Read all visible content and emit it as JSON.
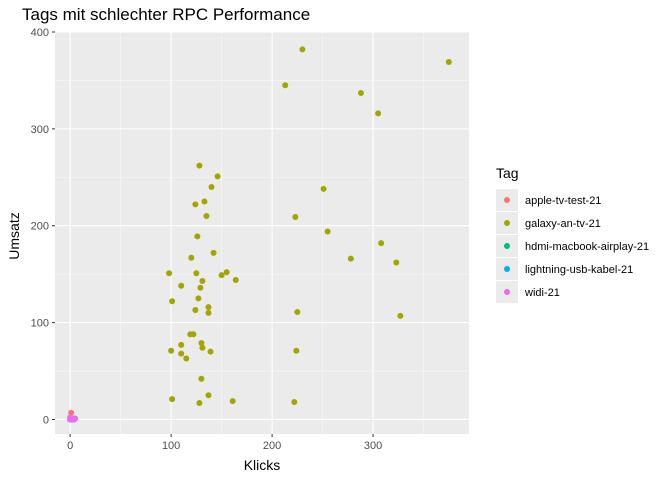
{
  "chart_data": {
    "type": "scatter",
    "title": "Tags mit schlechter RPC Performance",
    "xlabel": "Klicks",
    "ylabel": "Umsatz",
    "xlim": [
      -15,
      395
    ],
    "ylim": [
      -15,
      400
    ],
    "x_ticks": [
      0,
      100,
      200,
      300
    ],
    "y_ticks": [
      0,
      100,
      200,
      300,
      400
    ],
    "grid": true,
    "legend": {
      "title": "Tag",
      "position": "right"
    },
    "series": [
      {
        "name": "apple-tv-test-21",
        "color": "#F8766D",
        "points": [
          [
            1,
            7
          ],
          [
            1,
            0
          ],
          [
            2,
            0
          ]
        ]
      },
      {
        "name": "galaxy-an-tv-21",
        "color": "#A3A500",
        "points": [
          [
            230,
            382
          ],
          [
            375,
            369
          ],
          [
            213,
            345
          ],
          [
            288,
            337
          ],
          [
            305,
            316
          ],
          [
            128,
            262
          ],
          [
            146,
            251
          ],
          [
            133,
            225
          ],
          [
            140,
            240
          ],
          [
            251,
            238
          ],
          [
            124,
            222
          ],
          [
            135,
            210
          ],
          [
            223,
            209
          ],
          [
            255,
            194
          ],
          [
            308,
            182
          ],
          [
            126,
            189
          ],
          [
            142,
            172
          ],
          [
            120,
            167
          ],
          [
            278,
            166
          ],
          [
            323,
            162
          ],
          [
            98,
            151
          ],
          [
            125,
            151
          ],
          [
            155,
            152
          ],
          [
            150,
            149
          ],
          [
            164,
            144
          ],
          [
            131,
            143
          ],
          [
            129,
            136
          ],
          [
            110,
            138
          ],
          [
            137,
            116
          ],
          [
            137,
            110
          ],
          [
            127,
            125
          ],
          [
            101,
            122
          ],
          [
            124,
            113
          ],
          [
            225,
            111
          ],
          [
            327,
            107
          ],
          [
            122,
            88
          ],
          [
            119,
            88
          ],
          [
            130,
            79
          ],
          [
            110,
            77
          ],
          [
            131,
            74
          ],
          [
            100,
            71
          ],
          [
            139,
            70
          ],
          [
            110,
            68
          ],
          [
            224,
            71
          ],
          [
            115,
            63
          ],
          [
            130,
            42
          ],
          [
            137,
            25
          ],
          [
            101,
            21
          ],
          [
            161,
            19
          ],
          [
            222,
            18
          ],
          [
            128,
            17
          ]
        ]
      },
      {
        "name": "hdmi-macbook-airplay-21",
        "color": "#00BF7D",
        "points": [
          [
            0,
            0
          ],
          [
            1,
            1
          ]
        ]
      },
      {
        "name": "lightning-usb-kabel-21",
        "color": "#00B0F6",
        "points": [
          [
            1,
            0
          ],
          [
            2,
            1
          ]
        ]
      },
      {
        "name": "widi-21",
        "color": "#E76BF3",
        "points": [
          [
            0,
            0
          ],
          [
            1,
            1
          ],
          [
            2,
            0
          ],
          [
            3,
            1
          ],
          [
            4,
            0
          ],
          [
            5,
            1
          ],
          [
            0,
            2
          ],
          [
            3,
            0
          ]
        ]
      }
    ]
  }
}
